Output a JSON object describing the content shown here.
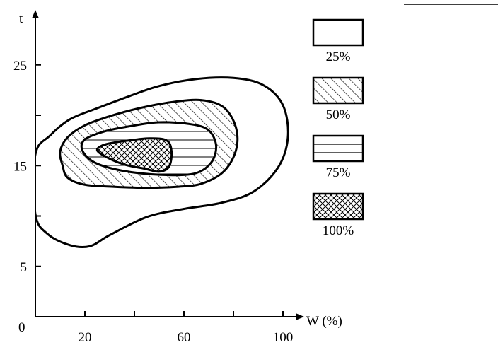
{
  "chart_data": {
    "type": "contour",
    "x_axis": {
      "label": "W (%)",
      "ticks": [
        20,
        60,
        100
      ],
      "minor_ticks": [
        40,
        80
      ],
      "range": [
        0,
        105
      ]
    },
    "y_axis": {
      "label": "t",
      "ticks": [
        5,
        15,
        25
      ],
      "minor_ticks": [
        10,
        20
      ],
      "range": [
        0,
        30
      ]
    },
    "origin_label": "0",
    "legend": [
      {
        "label": "25%",
        "pattern": "blank"
      },
      {
        "label": "50%",
        "pattern": "diagonal-hatch"
      },
      {
        "label": "75%",
        "pattern": "horizontal-lines"
      },
      {
        "label": "100%",
        "pattern": "cross-hatch"
      }
    ],
    "contours": [
      {
        "level": "25%",
        "pattern": "blank",
        "points": [
          [
            0,
            10.2
          ],
          [
            5,
            8.2
          ],
          [
            14,
            7.1
          ],
          [
            22,
            7.0
          ],
          [
            30,
            8.1
          ],
          [
            45,
            9.9
          ],
          [
            60,
            10.7
          ],
          [
            75,
            11.3
          ],
          [
            88,
            12.4
          ],
          [
            98,
            14.8
          ],
          [
            102,
            17.8
          ],
          [
            100,
            21.0
          ],
          [
            92,
            23.0
          ],
          [
            80,
            23.7
          ],
          [
            65,
            23.6
          ],
          [
            50,
            22.9
          ],
          [
            38,
            21.9
          ],
          [
            25,
            20.7
          ],
          [
            14,
            19.6
          ],
          [
            6,
            18.0
          ],
          [
            0,
            16.1
          ]
        ]
      },
      {
        "level": "50%",
        "pattern": "diagonal-hatch",
        "points": [
          [
            11,
            15.0
          ],
          [
            13,
            13.8
          ],
          [
            20,
            13.1
          ],
          [
            32,
            12.9
          ],
          [
            45,
            12.8
          ],
          [
            57,
            12.9
          ],
          [
            67,
            13.2
          ],
          [
            76,
            14.4
          ],
          [
            81,
            16.5
          ],
          [
            81,
            18.8
          ],
          [
            76,
            20.8
          ],
          [
            67,
            21.5
          ],
          [
            55,
            21.3
          ],
          [
            42,
            20.7
          ],
          [
            30,
            19.9
          ],
          [
            20,
            19.0
          ],
          [
            13,
            17.8
          ],
          [
            10,
            16.4
          ]
        ]
      },
      {
        "level": "75%",
        "pattern": "horizontal-lines",
        "points": [
          [
            19,
            16.5
          ],
          [
            24,
            15.3
          ],
          [
            35,
            14.5
          ],
          [
            50,
            14.1
          ],
          [
            64,
            14.2
          ],
          [
            71,
            15.3
          ],
          [
            73,
            17.0
          ],
          [
            70,
            18.5
          ],
          [
            63,
            19.1
          ],
          [
            50,
            19.3
          ],
          [
            38,
            18.9
          ],
          [
            28,
            18.4
          ],
          [
            20,
            17.6
          ]
        ]
      },
      {
        "level": "100%",
        "pattern": "cross-hatch",
        "points": [
          [
            25,
            16.5
          ],
          [
            29,
            15.8
          ],
          [
            36,
            15.1
          ],
          [
            44,
            14.7
          ],
          [
            50,
            14.4
          ],
          [
            54,
            14.9
          ],
          [
            55,
            16.4
          ],
          [
            53,
            17.5
          ],
          [
            46,
            17.7
          ],
          [
            38,
            17.5
          ],
          [
            32,
            17.3
          ],
          [
            27,
            17.0
          ]
        ]
      }
    ]
  }
}
